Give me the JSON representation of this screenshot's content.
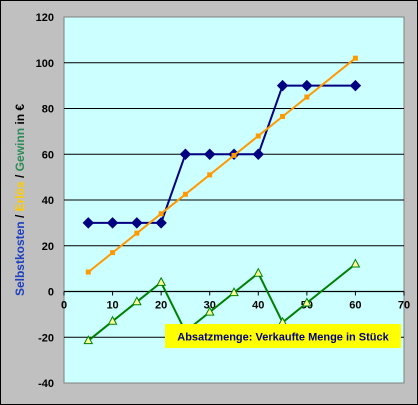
{
  "chart_data": {
    "type": "line",
    "xlim": [
      0,
      70
    ],
    "ylim": [
      -40,
      120
    ],
    "x_ticks": [
      "0",
      "10",
      "20",
      "30",
      "40",
      "50",
      "60",
      "70"
    ],
    "y_ticks": [
      "-40",
      "-20",
      "0",
      "20",
      "40",
      "60",
      "80",
      "100",
      "120"
    ],
    "ylabel_parts": [
      {
        "text": "Selbstkosten",
        "color": "#1f3fbf"
      },
      {
        "text": " / ",
        "color": "#000000"
      },
      {
        "text": "Erlös",
        "color": "#ffcc00"
      },
      {
        "text": " / ",
        "color": "#000000"
      },
      {
        "text": "Gewinn",
        "color": "#2e8b57"
      },
      {
        "text": "   in €",
        "color": "#000000"
      }
    ],
    "annotation": "Absatzmenge: Verkaufte Menge in Stück",
    "grid": true,
    "colors": {
      "plot_background": "#ccffff",
      "chart_background": "#c0c0c0",
      "grid": "#000000",
      "annotation_background": "#ffff00",
      "annotation_text": "#000080"
    },
    "series": [
      {
        "color": "#000080",
        "marker": "diamond",
        "segments": [
          {
            "x": [
              5,
              10,
              15,
              20
            ],
            "y": [
              30,
              30,
              30,
              30
            ]
          },
          {
            "x": [
              20,
              25,
              30,
              35,
              40
            ],
            "y": [
              30,
              60,
              60,
              60,
              60
            ]
          },
          {
            "x": [
              40,
              45,
              50,
              60
            ],
            "y": [
              60,
              90,
              90,
              90
            ]
          }
        ]
      },
      {
        "color": "#ff9900",
        "marker": "square",
        "segments": [
          {
            "x": [
              5,
              10,
              15,
              20,
              25,
              30,
              35,
              40,
              45,
              50,
              60
            ],
            "y": [
              8.5,
              17,
              25.5,
              34,
              42.5,
              51,
              59.5,
              68,
              76.5,
              85,
              102
            ]
          }
        ]
      },
      {
        "color": "#008000",
        "marker": "triangle",
        "segments": [
          {
            "x": [
              5,
              10,
              15,
              20
            ],
            "y": [
              -21.5,
              -13,
              -4.5,
              4
            ]
          },
          {
            "x": [
              20,
              25,
              30,
              35,
              40
            ],
            "y": [
              4,
              -17.5,
              -9,
              -0.5,
              8
            ]
          },
          {
            "x": [
              40,
              45,
              50,
              60
            ],
            "y": [
              8,
              -13.5,
              -5,
              12
            ]
          }
        ]
      }
    ]
  }
}
